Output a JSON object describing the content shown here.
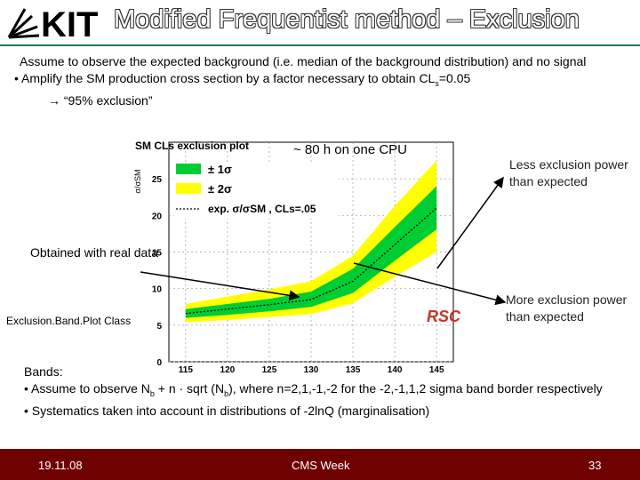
{
  "header": {
    "logo_text": "KIT",
    "title": "Modified Frequentist method – Exclusion"
  },
  "intro": {
    "line1": "Assume to observe the expected background (i.e. median of the background distribution) and no signal",
    "bullet2_prefix": "• Amplify the SM production cross section by a factor necessary to obtain CL",
    "bullet2_sub": "s",
    "bullet2_suffix": "=0.05",
    "arrow_line": "→ “95% exclusion”"
  },
  "chart_data": {
    "type": "area",
    "title": "SM CLs exclusion plot",
    "ylabel": "σ/σSM",
    "x": [
      115,
      120,
      125,
      130,
      135,
      140,
      145
    ],
    "xlim": [
      113,
      147
    ],
    "ylim": [
      0,
      30
    ],
    "xticks": [
      "115",
      "120",
      "125",
      "130",
      "135",
      "140",
      "145"
    ],
    "yticks": [
      "0",
      "5",
      "10",
      "15",
      "20",
      "25"
    ],
    "series": [
      {
        "name": "± 2σ",
        "color": "#ffff00",
        "upper": [
          7.9,
          8.9,
          9.9,
          11.0,
          14.5,
          21.3,
          27.5
        ],
        "lower": [
          5.4,
          5.7,
          6.1,
          6.5,
          8.0,
          11.6,
          15.0
        ]
      },
      {
        "name": "± 1σ",
        "color": "#00cc33",
        "upper": [
          7.2,
          7.9,
          8.6,
          9.6,
          12.7,
          18.4,
          24.0
        ],
        "lower": [
          6.0,
          6.4,
          6.9,
          7.5,
          9.4,
          13.8,
          18.1
        ]
      },
      {
        "name": "exp. σ/σSM , CLs=.05",
        "style": "dotted",
        "values": [
          6.6,
          7.2,
          7.8,
          8.5,
          11.0,
          16.0,
          21.0
        ]
      }
    ],
    "legend": [
      "± 1σ",
      "± 2σ",
      "exp. σ/σSM , CLs=.05"
    ],
    "grid": true
  },
  "annotations": {
    "cpu": "~ 80 h on one CPU",
    "less_exclusion": "Less exclusion power than expected",
    "more_exclusion": "More exclusion power than expected",
    "observed": "Obtained with real data",
    "class": "Exclusion.Band.Plot Class",
    "watermark_text": "RSC"
  },
  "bands": {
    "heading": "Bands:",
    "bullet1_a": "• Assume to observe N",
    "bullet1_sub1": "b",
    "bullet1_b": " + n · sqrt (N",
    "bullet1_sub2": "b",
    "bullet1_c": "), where n=2,1,-1,-2 for the -2,-1,1,2 sigma band border respectively",
    "bullet2": "• Systematics taken into account in distributions of -2lnQ (marginalisation)"
  },
  "footer": {
    "date": "19.11.08",
    "event": "CMS Week",
    "page": "33"
  },
  "colors": {
    "footer_bg": "#6f0000",
    "accent": "#1a7a57",
    "arrow": "#000000"
  }
}
